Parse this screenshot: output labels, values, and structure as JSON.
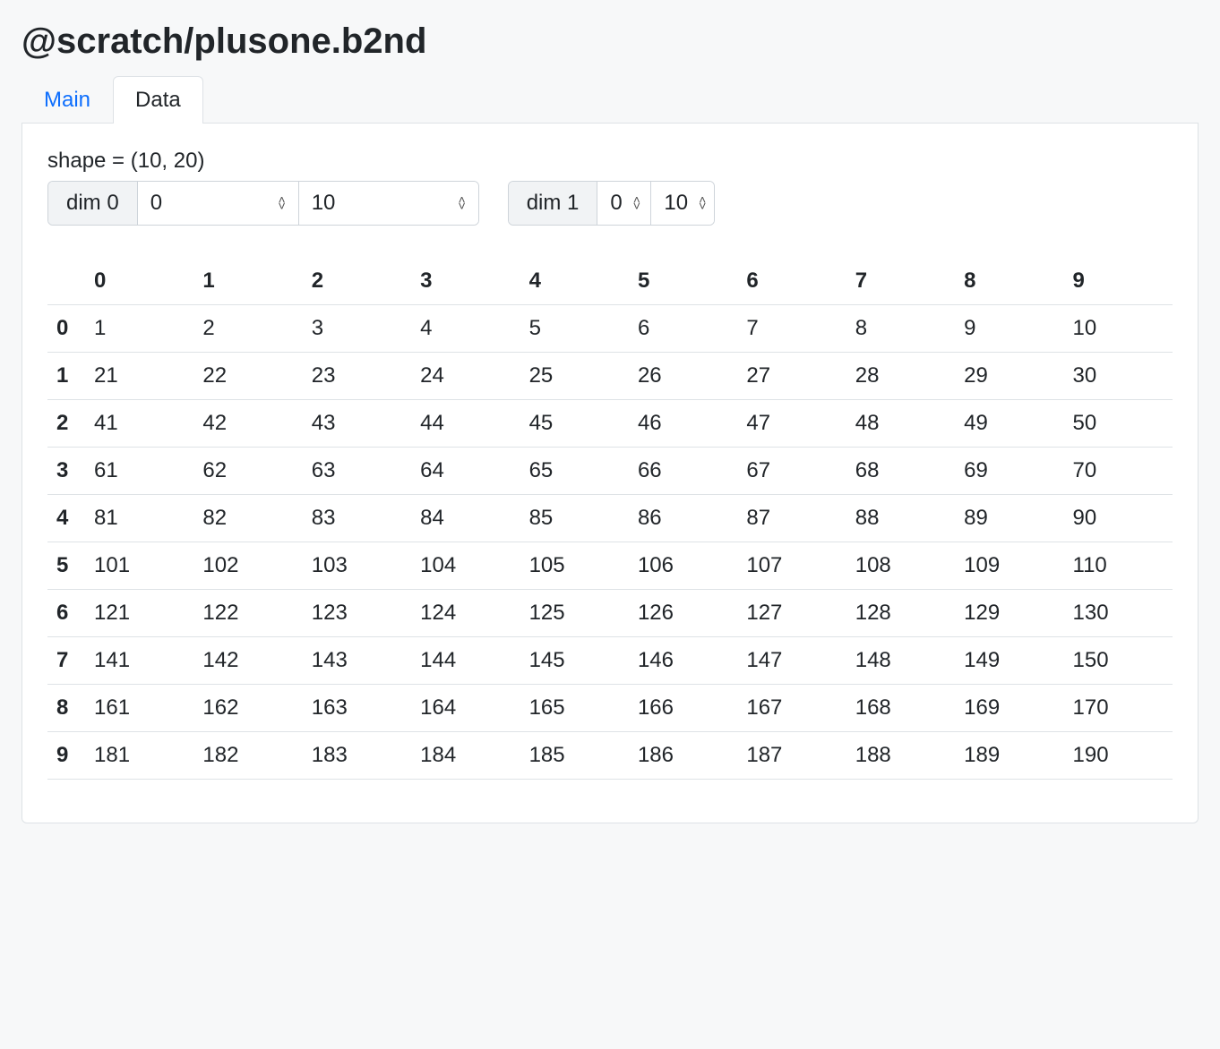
{
  "title": "@scratch/plusone.b2nd",
  "tabs": [
    {
      "label": "Main",
      "active": false
    },
    {
      "label": "Data",
      "active": true
    }
  ],
  "shape_label": "shape = (10, 20)",
  "dims": [
    {
      "label": "dim 0",
      "start": "0",
      "stop": "10",
      "input_width_start": 180,
      "input_width_stop": 200
    },
    {
      "label": "dim 1",
      "start": "0",
      "stop": "10",
      "input_width_start": 60,
      "input_width_stop": 70
    }
  ],
  "table": {
    "columns": [
      "0",
      "1",
      "2",
      "3",
      "4",
      "5",
      "6",
      "7",
      "8",
      "9"
    ],
    "row_headers": [
      "0",
      "1",
      "2",
      "3",
      "4",
      "5",
      "6",
      "7",
      "8",
      "9"
    ],
    "rows": [
      [
        1,
        2,
        3,
        4,
        5,
        6,
        7,
        8,
        9,
        10
      ],
      [
        21,
        22,
        23,
        24,
        25,
        26,
        27,
        28,
        29,
        30
      ],
      [
        41,
        42,
        43,
        44,
        45,
        46,
        47,
        48,
        49,
        50
      ],
      [
        61,
        62,
        63,
        64,
        65,
        66,
        67,
        68,
        69,
        70
      ],
      [
        81,
        82,
        83,
        84,
        85,
        86,
        87,
        88,
        89,
        90
      ],
      [
        101,
        102,
        103,
        104,
        105,
        106,
        107,
        108,
        109,
        110
      ],
      [
        121,
        122,
        123,
        124,
        125,
        126,
        127,
        128,
        129,
        130
      ],
      [
        141,
        142,
        143,
        144,
        145,
        146,
        147,
        148,
        149,
        150
      ],
      [
        161,
        162,
        163,
        164,
        165,
        166,
        167,
        168,
        169,
        170
      ],
      [
        181,
        182,
        183,
        184,
        185,
        186,
        187,
        188,
        189,
        190
      ]
    ]
  },
  "colors": {
    "background": "#f7f8f9",
    "panel_bg": "#ffffff",
    "border": "#dee2e6",
    "input_border": "#ced4da",
    "link": "#0d6efd",
    "text": "#212529",
    "dim_label_bg": "#f1f3f5"
  }
}
